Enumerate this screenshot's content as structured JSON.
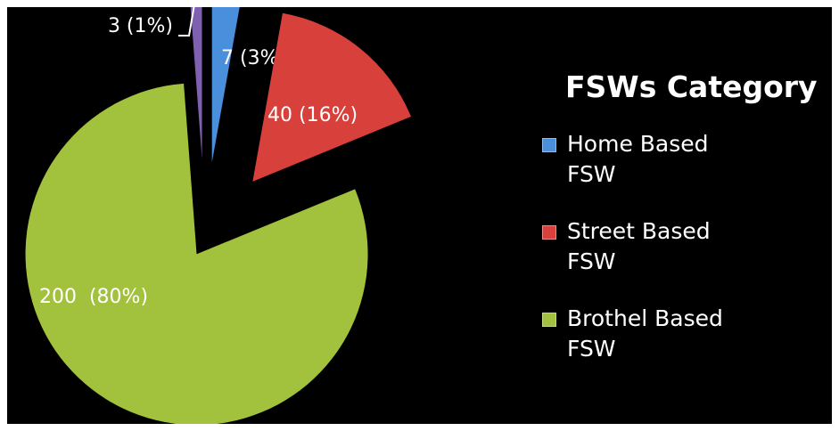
{
  "chart_data": {
    "type": "pie",
    "title": "FSWs Category",
    "categories": [
      "Home Based FSW",
      "Street Based FSW",
      "Brothel Based FSW",
      null
    ],
    "values": [
      7,
      40,
      200,
      3
    ],
    "value_labels": [
      "7 (3%)",
      "40 (16%)",
      "200  (80%)",
      "3 (1%)"
    ],
    "colors": [
      "#4a8fdc",
      "#d8403c",
      "#a2c13c",
      "#7e5fb0"
    ],
    "legend": "right"
  }
}
